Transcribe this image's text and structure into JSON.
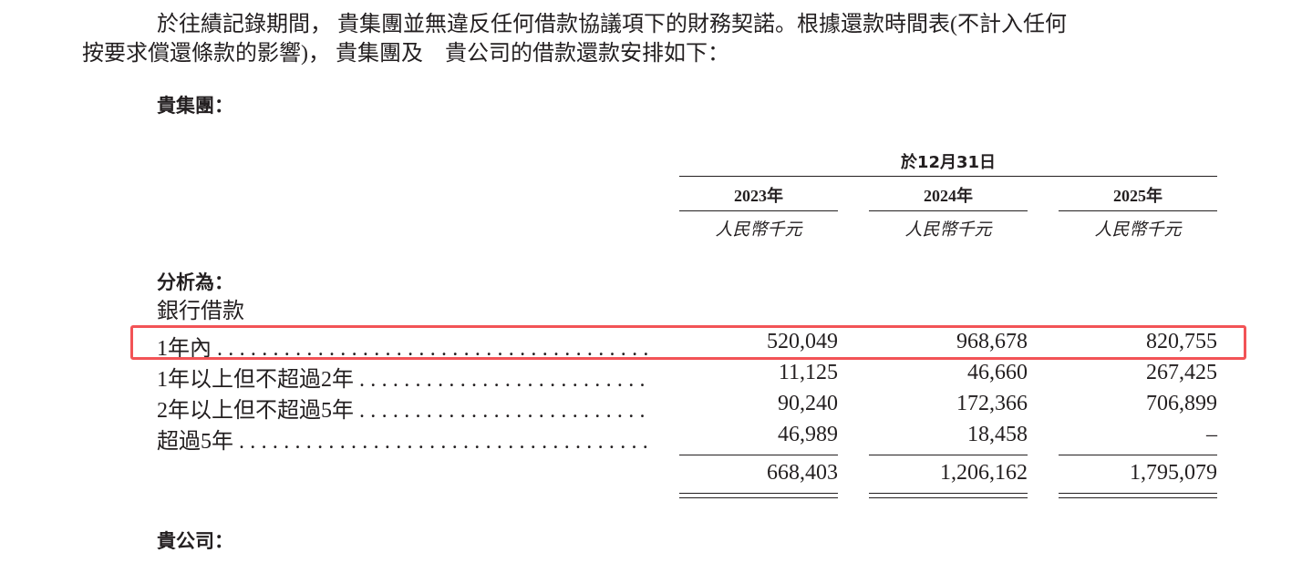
{
  "intro": {
    "line1": "於往績記錄期間， 貴集團並無違反任何借款協議項下的財務契諾。根據還款時間表(不計入任何",
    "line2": "按要求償還條款的影響)， 貴集團及　貴公司的借款還款安排如下："
  },
  "group_heading": "貴集團：",
  "table": {
    "header": "於12月31日",
    "columns": [
      {
        "year": "2023年",
        "unit": "人民幣千元"
      },
      {
        "year": "2024年",
        "unit": "人民幣千元"
      },
      {
        "year": "2025年",
        "unit": "人民幣千元"
      }
    ],
    "section": "分析為：",
    "subsection": "銀行借款",
    "rows": [
      {
        "label": "1年內",
        "values": [
          "520,049",
          "968,678",
          "820,755"
        ],
        "highlighted": true
      },
      {
        "label": "1年以上但不超過2年",
        "values": [
          "11,125",
          "46,660",
          "267,425"
        ]
      },
      {
        "label": "2年以上但不超過5年",
        "values": [
          "90,240",
          "172,366",
          "706,899"
        ]
      },
      {
        "label": "超過5年",
        "values": [
          "46,989",
          "18,458",
          "–"
        ]
      }
    ],
    "total": [
      "668,403",
      "1,206,162",
      "1,795,079"
    ]
  },
  "company_heading": "貴公司：",
  "highlight_color": "#f25356"
}
